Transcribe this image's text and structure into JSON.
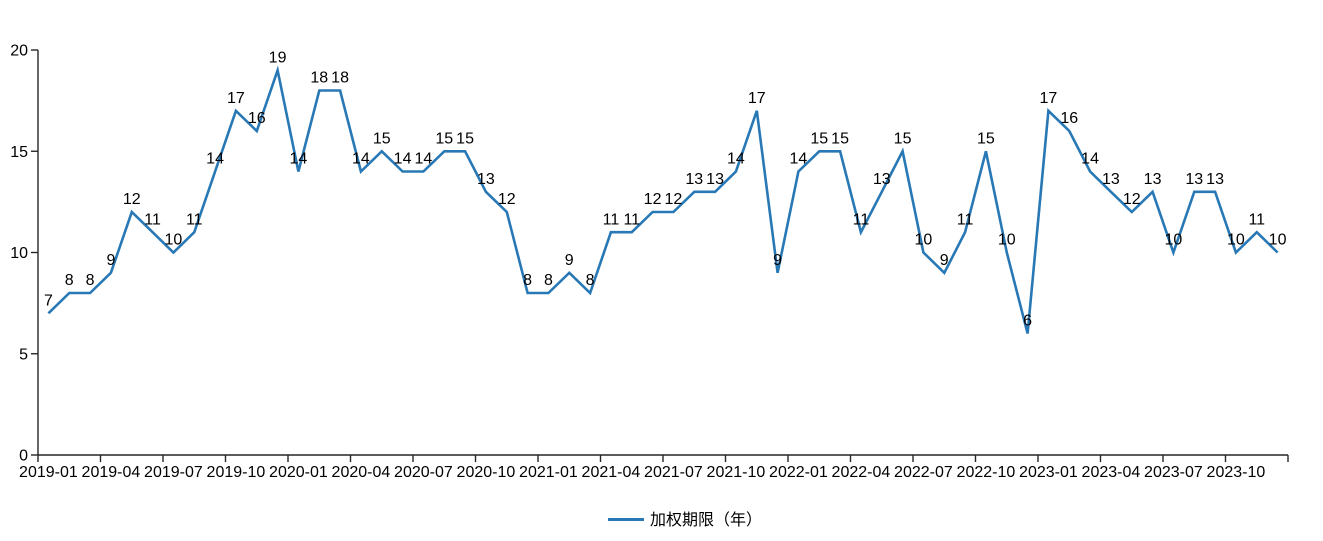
{
  "chart_data": {
    "type": "line",
    "title": "",
    "xlabel": "",
    "ylabel": "",
    "ylim": [
      0,
      20
    ],
    "yticks": [
      0,
      5,
      10,
      15,
      20
    ],
    "x_tick_label_interval": 3,
    "grid": false,
    "data_labels_shown": true,
    "legend_position": "bottom-center",
    "line_color": "#2878B5",
    "label_color": "#000000",
    "axis_color": "#262626",
    "x": [
      "2019-01",
      "2019-02",
      "2019-03",
      "2019-04",
      "2019-05",
      "2019-06",
      "2019-07",
      "2019-08",
      "2019-09",
      "2019-10",
      "2019-11",
      "2019-12",
      "2020-01",
      "2020-02",
      "2020-03",
      "2020-04",
      "2020-05",
      "2020-06",
      "2020-07",
      "2020-08",
      "2020-09",
      "2020-10",
      "2020-11",
      "2020-12",
      "2021-01",
      "2021-02",
      "2021-03",
      "2021-04",
      "2021-05",
      "2021-06",
      "2021-07",
      "2021-08",
      "2021-09",
      "2021-10",
      "2021-11",
      "2021-12",
      "2022-01",
      "2022-02",
      "2022-03",
      "2022-04",
      "2022-05",
      "2022-06",
      "2022-07",
      "2022-08",
      "2022-09",
      "2022-10",
      "2022-11",
      "2022-12",
      "2023-01",
      "2023-02",
      "2023-03",
      "2023-04",
      "2023-05",
      "2023-06",
      "2023-07",
      "2023-08",
      "2023-09",
      "2023-10",
      "2023-11",
      "2023-12"
    ],
    "x_tick_labels": [
      "2019-01",
      "2019-04",
      "2019-07",
      "2019-10",
      "2020-01",
      "2020-04",
      "2020-07",
      "2020-10",
      "2021-01",
      "2021-04",
      "2021-07",
      "2021-10",
      "2022-01",
      "2022-04",
      "2022-07",
      "2022-10",
      "2023-01",
      "2023-04",
      "2023-07",
      "2023-10"
    ],
    "series": [
      {
        "name": "加权期限（年）",
        "values": [
          7,
          8,
          8,
          9,
          12,
          11,
          10,
          11,
          14,
          17,
          16,
          19,
          14,
          18,
          18,
          14,
          15,
          14,
          14,
          15,
          15,
          13,
          12,
          8,
          8,
          9,
          8,
          11,
          11,
          12,
          12,
          13,
          13,
          14,
          17,
          9,
          14,
          15,
          15,
          11,
          13,
          15,
          10,
          9,
          11,
          15,
          10,
          6,
          17,
          16,
          14,
          13,
          12,
          13,
          10,
          13,
          13,
          10,
          11,
          10
        ]
      }
    ]
  },
  "legend": {
    "label": "加权期限（年）"
  }
}
